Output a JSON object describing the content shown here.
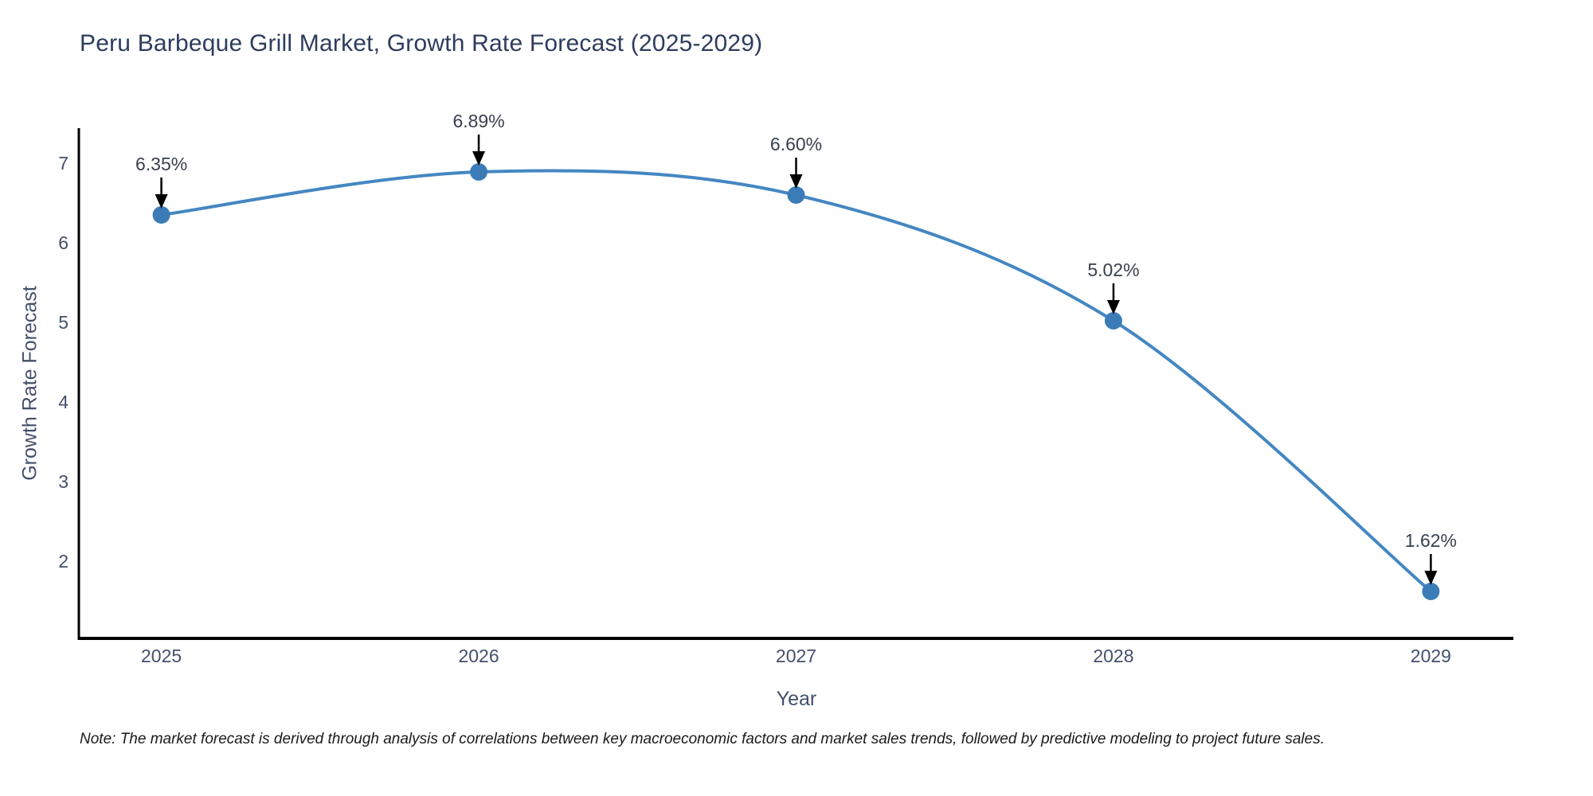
{
  "title": "Peru Barbeque Grill Market, Growth Rate Forecast (2025-2029)",
  "note": "Note: The market forecast is derived through analysis of correlations between key macroeconomic factors and market sales trends, followed by predictive modeling to project future sales.",
  "chart_data": {
    "type": "line",
    "line_shape": "spline",
    "x": [
      2025,
      2026,
      2027,
      2028,
      2029
    ],
    "categories": [
      "2025",
      "2026",
      "2027",
      "2028",
      "2029"
    ],
    "values": [
      6.35,
      6.89,
      6.6,
      5.02,
      1.62
    ],
    "point_labels": [
      "6.35%",
      "6.89%",
      "6.60%",
      "5.02%",
      "1.62%"
    ],
    "series_name": "Growth Rate Forecast",
    "title": "Peru Barbeque Grill Market, Growth Rate Forecast (2025-2029)",
    "xlabel": "Year",
    "ylabel": "Growth Rate Forecast",
    "x_range": [
      2024.74,
      2029.26
    ],
    "y_range": [
      1.03,
      7.44
    ],
    "y_ticks": [
      2,
      3,
      4,
      5,
      6,
      7
    ],
    "grid": false,
    "legend_position": "none",
    "marker_radius": 11,
    "line_width": 4,
    "colors": {
      "line": "#4487c2",
      "marker": "#3b7cb8",
      "axis": "#000000",
      "arrow": "#000000",
      "title_text": "#2e3c5e",
      "tick_text": "#42506b",
      "annotation_text": "#39404d",
      "note_text": "#1a1a1a",
      "background": "#ffffff"
    }
  }
}
